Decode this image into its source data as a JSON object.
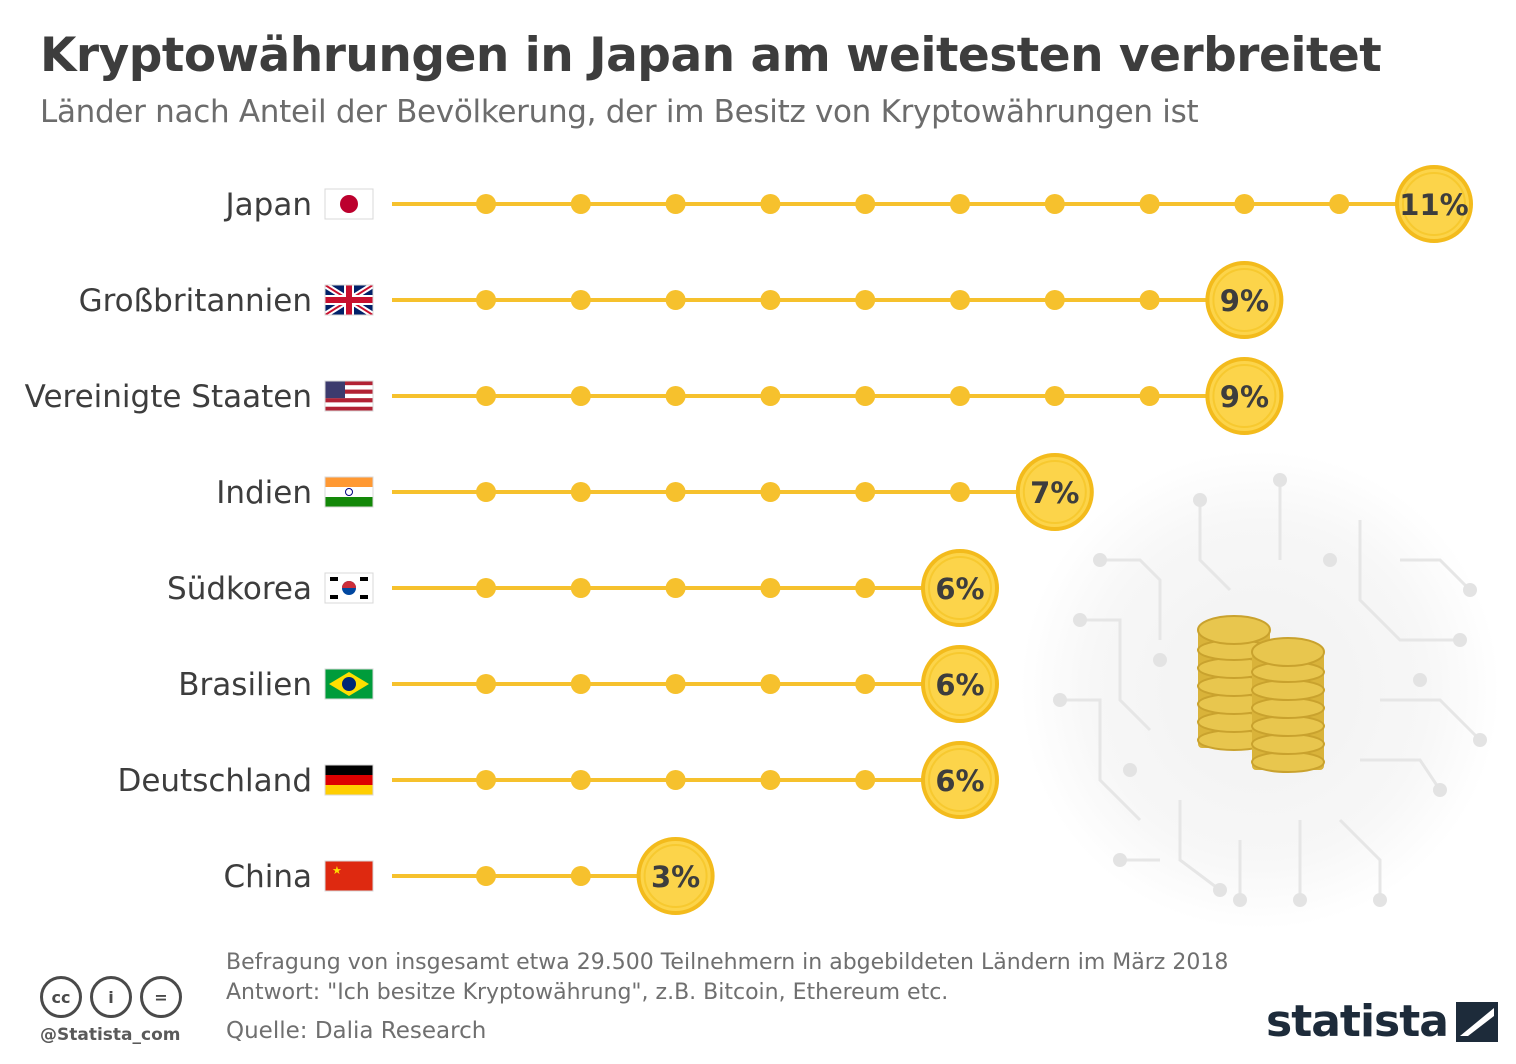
{
  "title": "Kryptowährungen in Japan am weitesten verbreitet",
  "subtitle": "Länder nach Anteil der Bevölkerung, der im Besitz von Kryptowährungen ist",
  "chart_data": {
    "type": "bar",
    "style": "dot-lollipop",
    "categories": [
      "Japan",
      "Großbritannien",
      "Vereinigte Staaten",
      "Indien",
      "Südkorea",
      "Brasilien",
      "Deutschland",
      "China"
    ],
    "values": [
      11,
      9,
      9,
      7,
      6,
      6,
      6,
      3
    ],
    "value_labels": [
      "11%",
      "9%",
      "9%",
      "7%",
      "6%",
      "6%",
      "6%",
      "3%"
    ],
    "unit": "%",
    "flags": [
      "jp",
      "gb",
      "us",
      "in",
      "kr",
      "br",
      "de",
      "cn"
    ],
    "xlim": [
      0,
      11
    ],
    "accent_color": "#f6c12d",
    "bubble_fill": "#fcd44a"
  },
  "footer": {
    "note_line1": "Befragung von insgesamt etwa 29.500 Teilnehmern in abgebildeten Ländern im März 2018",
    "note_line2": "Antwort: \"Ich besitze Kryptowährung\", z.B. Bitcoin, Ethereum etc.",
    "source": "Quelle: Dalia Research",
    "handle": "@Statista_com",
    "brand": "statista",
    "cc_icons": [
      "cc-icon",
      "by-icon",
      "nd-icon"
    ],
    "cc_labels": [
      "cc",
      "i",
      "="
    ]
  }
}
